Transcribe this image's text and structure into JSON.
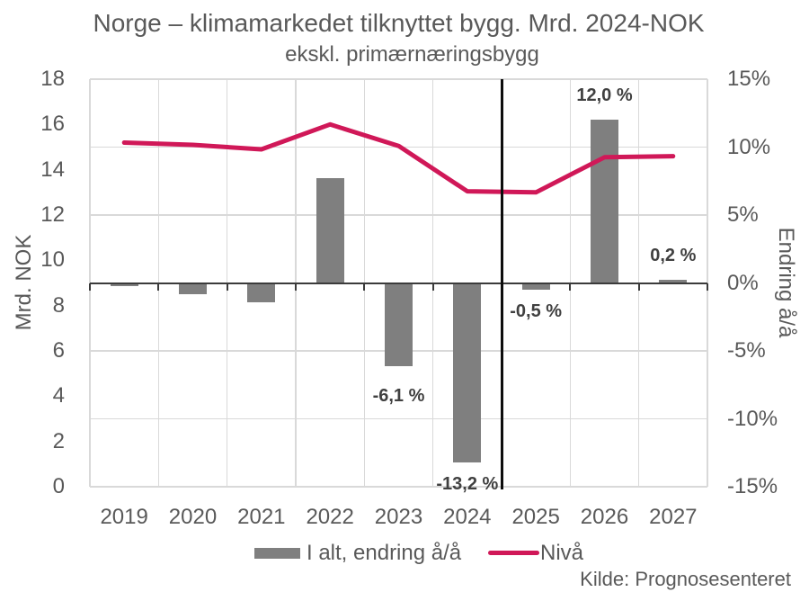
{
  "chart": {
    "title": "Norge – klimamarkedet tilknyttet bygg. Mrd. 2024-NOK",
    "subtitle": "ekskl. primærnæringsbygg",
    "source": "Kilde: Prognosesenteret",
    "colors": {
      "bar": "#7f7f7f",
      "line": "#d01858",
      "gridline": "#d9d9d9",
      "axis_text": "#595959",
      "zero_axis": "#3b3b3b",
      "divider": "#0d0d0d",
      "data_label": "#404040"
    }
  },
  "chart_data": {
    "type": "combo",
    "categories": [
      "2019",
      "2020",
      "2021",
      "2022",
      "2023",
      "2024",
      "2025",
      "2026",
      "2027"
    ],
    "series": [
      {
        "name": "I alt, endring å/å",
        "type": "bar",
        "axis": "right",
        "color": "#7f7f7f",
        "values": [
          -0.2,
          -0.8,
          -1.4,
          7.7,
          -6.1,
          -13.2,
          -0.5,
          12.0,
          0.2
        ],
        "data_labels": [
          {
            "category": "2023",
            "text": "-6,1 %",
            "gap": 22
          },
          {
            "category": "2024",
            "text": "-13,2 %",
            "gap": 13
          },
          {
            "category": "2025",
            "text": "-0,5 %",
            "gap": 13
          },
          {
            "category": "2026",
            "text": "12,0 %",
            "gap": 15
          },
          {
            "category": "2027",
            "text": "0,2 %",
            "gap": 15
          }
        ]
      },
      {
        "name": "Nivå",
        "type": "line",
        "axis": "left",
        "color": "#d01858",
        "values": [
          15.2,
          15.1,
          14.9,
          16.0,
          15.05,
          13.05,
          13.0,
          14.55,
          14.6
        ]
      }
    ],
    "left_axis": {
      "title": "Mrd. NOK",
      "min": 0,
      "max": 18,
      "step": 2,
      "tick_labels": [
        "0",
        "2",
        "4",
        "6",
        "8",
        "10",
        "12",
        "14",
        "16",
        "18"
      ]
    },
    "right_axis": {
      "title": "Endring å/å",
      "min": -15,
      "max": 15,
      "step": 5,
      "tick_labels": [
        "-15%",
        "-10%",
        "-5%",
        "0%",
        "5%",
        "10%",
        "15%"
      ]
    },
    "grid": true,
    "legend_position": "bottom",
    "divider_after_category": "2024"
  }
}
